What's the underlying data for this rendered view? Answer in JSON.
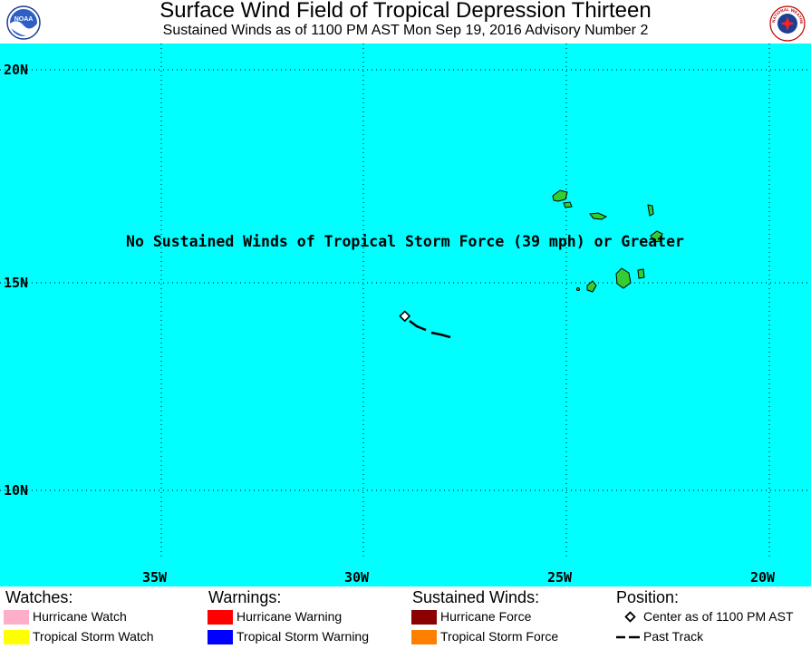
{
  "header": {
    "title": "Surface Wind Field of Tropical Depression Thirteen",
    "subtitle": "Sustained Winds as of 1100 PM AST Mon Sep 19, 2016     Advisory Number 2",
    "noaa_logo_text": "NOAA",
    "nws_logo_text": "NATIONAL WEATHER SERVICE"
  },
  "map": {
    "ocean_color": "#00ffff",
    "land_color": "#33cc33",
    "lat_labels": [
      "20N",
      "15N",
      "10N"
    ],
    "lon_labels": [
      "35W",
      "30W",
      "25W",
      "20W"
    ],
    "note": "No Sustained Winds of Tropical Storm Force (39 mph) or Greater"
  },
  "legend": {
    "watches": {
      "heading": "Watches:",
      "items": [
        {
          "label": "Hurricane Watch",
          "color": "#ffaec9"
        },
        {
          "label": "Tropical Storm Watch",
          "color": "#ffff00"
        }
      ]
    },
    "warnings": {
      "heading": "Warnings:",
      "items": [
        {
          "label": "Hurricane Warning",
          "color": "#ff0000"
        },
        {
          "label": "Tropical Storm Warning",
          "color": "#0000ff"
        }
      ]
    },
    "winds": {
      "heading": "Sustained Winds:",
      "items": [
        {
          "label": "Hurricane Force",
          "color": "#8b0000"
        },
        {
          "label": "Tropical Storm Force",
          "color": "#ff8000"
        }
      ]
    },
    "position": {
      "heading": "Position:",
      "items": [
        {
          "label": "Center as of 1100 PM AST",
          "icon": "diamond-icon"
        },
        {
          "label": "Past Track",
          "icon": "dashed-line-icon"
        }
      ]
    }
  }
}
